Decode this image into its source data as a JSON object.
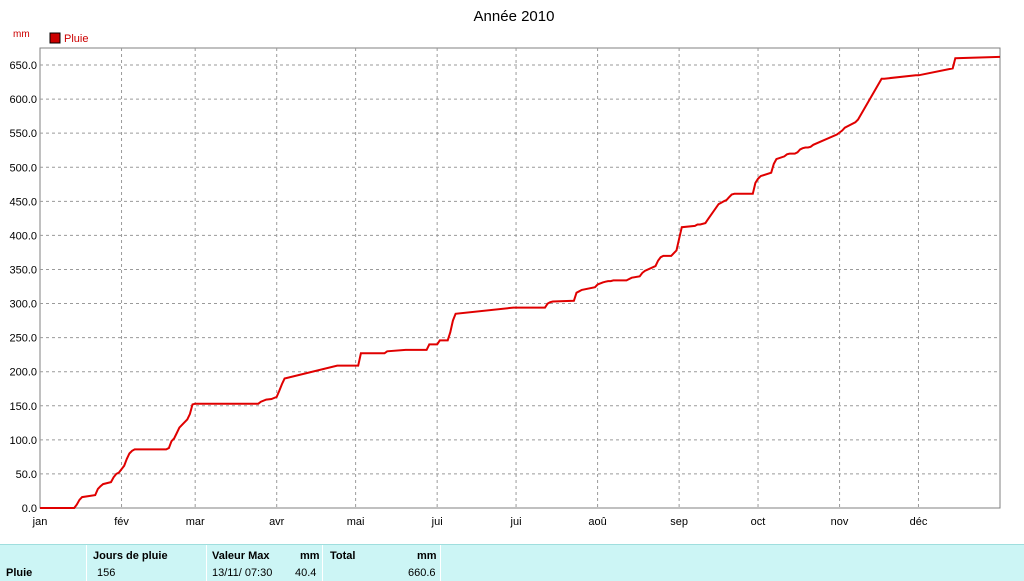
{
  "chart_data": {
    "type": "line",
    "title": "Année 2010",
    "ylabel": "mm",
    "ylim": [
      0,
      675
    ],
    "yticks": [
      "0.0",
      "50.0",
      "100.0",
      "150.0",
      "200.0",
      "250.0",
      "300.0",
      "350.0",
      "400.0",
      "450.0",
      "500.0",
      "550.0",
      "600.0",
      "650.0"
    ],
    "xlim": [
      0,
      365
    ],
    "xtick_labels": [
      "jan",
      "fév",
      "mar",
      "avr",
      "mai",
      "jui",
      "jui",
      "aoû",
      "sep",
      "oct",
      "nov",
      "déc"
    ],
    "grid": true,
    "legend": "top-left",
    "color": "#e00000",
    "series": [
      {
        "name": "Pluie",
        "x": [
          0,
          13,
          14,
          15,
          16,
          21,
          22,
          23,
          24,
          27,
          28,
          29,
          30,
          32,
          33,
          34,
          35,
          36,
          48,
          49,
          50,
          51,
          52,
          53,
          56,
          57,
          58,
          59,
          60,
          83,
          84,
          86,
          88,
          90,
          91,
          92,
          93,
          113,
          114,
          121,
          122,
          131,
          132,
          139,
          140,
          147,
          148,
          151,
          152,
          155,
          156,
          157,
          158,
          180,
          181,
          182,
          183,
          192,
          193,
          194,
          195,
          203,
          204,
          205,
          206,
          211,
          212,
          214,
          215,
          216,
          217,
          218,
          223,
          224,
          225,
          228,
          229,
          230,
          234,
          235,
          236,
          237,
          240,
          241,
          242,
          243,
          244,
          249,
          250,
          251,
          253,
          254,
          258,
          259,
          260,
          261,
          262,
          263,
          264,
          265,
          271,
          272,
          273,
          274,
          278,
          279,
          280,
          283,
          284,
          285,
          287,
          288,
          289,
          290,
          291,
          292,
          293,
          294,
          303,
          304,
          305,
          306,
          310,
          311,
          320,
          321,
          333,
          334,
          347,
          348,
          365
        ],
        "y": [
          0,
          0,
          5,
          12,
          16,
          19,
          28,
          32,
          35,
          38,
          45,
          50,
          52,
          62,
          72,
          80,
          84,
          86,
          86,
          88,
          98,
          102,
          110,
          118,
          130,
          138,
          152,
          153,
          153,
          153,
          156,
          159,
          160,
          163,
          172,
          182,
          190,
          209,
          209,
          209,
          227,
          227,
          230,
          232,
          232,
          232,
          240,
          240,
          246,
          246,
          258,
          275,
          285,
          294,
          294,
          294,
          294,
          294,
          300,
          302,
          303,
          304,
          316,
          318,
          320,
          324,
          328,
          331,
          332,
          333,
          333,
          334,
          334,
          336,
          338,
          340,
          345,
          348,
          355,
          363,
          368,
          370,
          370,
          374,
          378,
          395,
          412,
          414,
          416,
          416,
          418,
          424,
          446,
          448,
          450,
          452,
          456,
          460,
          461,
          461,
          461,
          477,
          483,
          487,
          492,
          505,
          512,
          516,
          519,
          520,
          520,
          522,
          526,
          528,
          529,
          529,
          530,
          533,
          548,
          551,
          554,
          558,
          566,
          570,
          630,
          630,
          635,
          635,
          645,
          660,
          662
        ]
      }
    ]
  },
  "summary": {
    "row_label": "Pluie",
    "rainy_days": {
      "header": "Jours de pluie",
      "value": "156"
    },
    "max_value": {
      "header": "Valeur Max",
      "unit": "mm",
      "date": "13/11/  07:30",
      "value": "40.4"
    },
    "total": {
      "header": "Total",
      "unit": "mm",
      "value": "660.6"
    }
  }
}
